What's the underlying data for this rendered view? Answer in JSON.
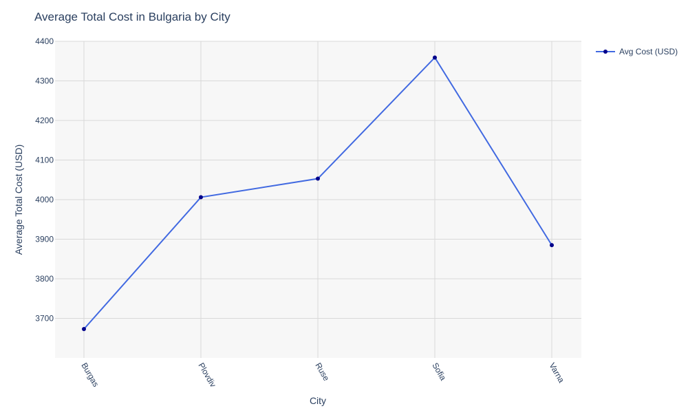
{
  "chart_data": {
    "type": "line",
    "title": "Average Total Cost in Bulgaria by City",
    "xlabel": "City",
    "ylabel": "Average Total Cost (USD)",
    "categories": [
      "Burgas",
      "Plovdiv",
      "Ruse",
      "Sofia",
      "Varna"
    ],
    "series": [
      {
        "name": "Avg Cost (USD)",
        "values": [
          3673,
          4006,
          4053,
          4359,
          3885
        ]
      }
    ],
    "ylim": [
      3600,
      4400
    ],
    "yticks": [
      3700,
      3800,
      3900,
      4000,
      4100,
      4200,
      4300,
      4400
    ],
    "grid": true,
    "legend": "top-right",
    "colors": {
      "line": "#4169e1",
      "marker": "#00008b",
      "plot_bg": "#f7f7f7",
      "grid": "#d9d9d9",
      "text": "#2a3f5f"
    }
  }
}
